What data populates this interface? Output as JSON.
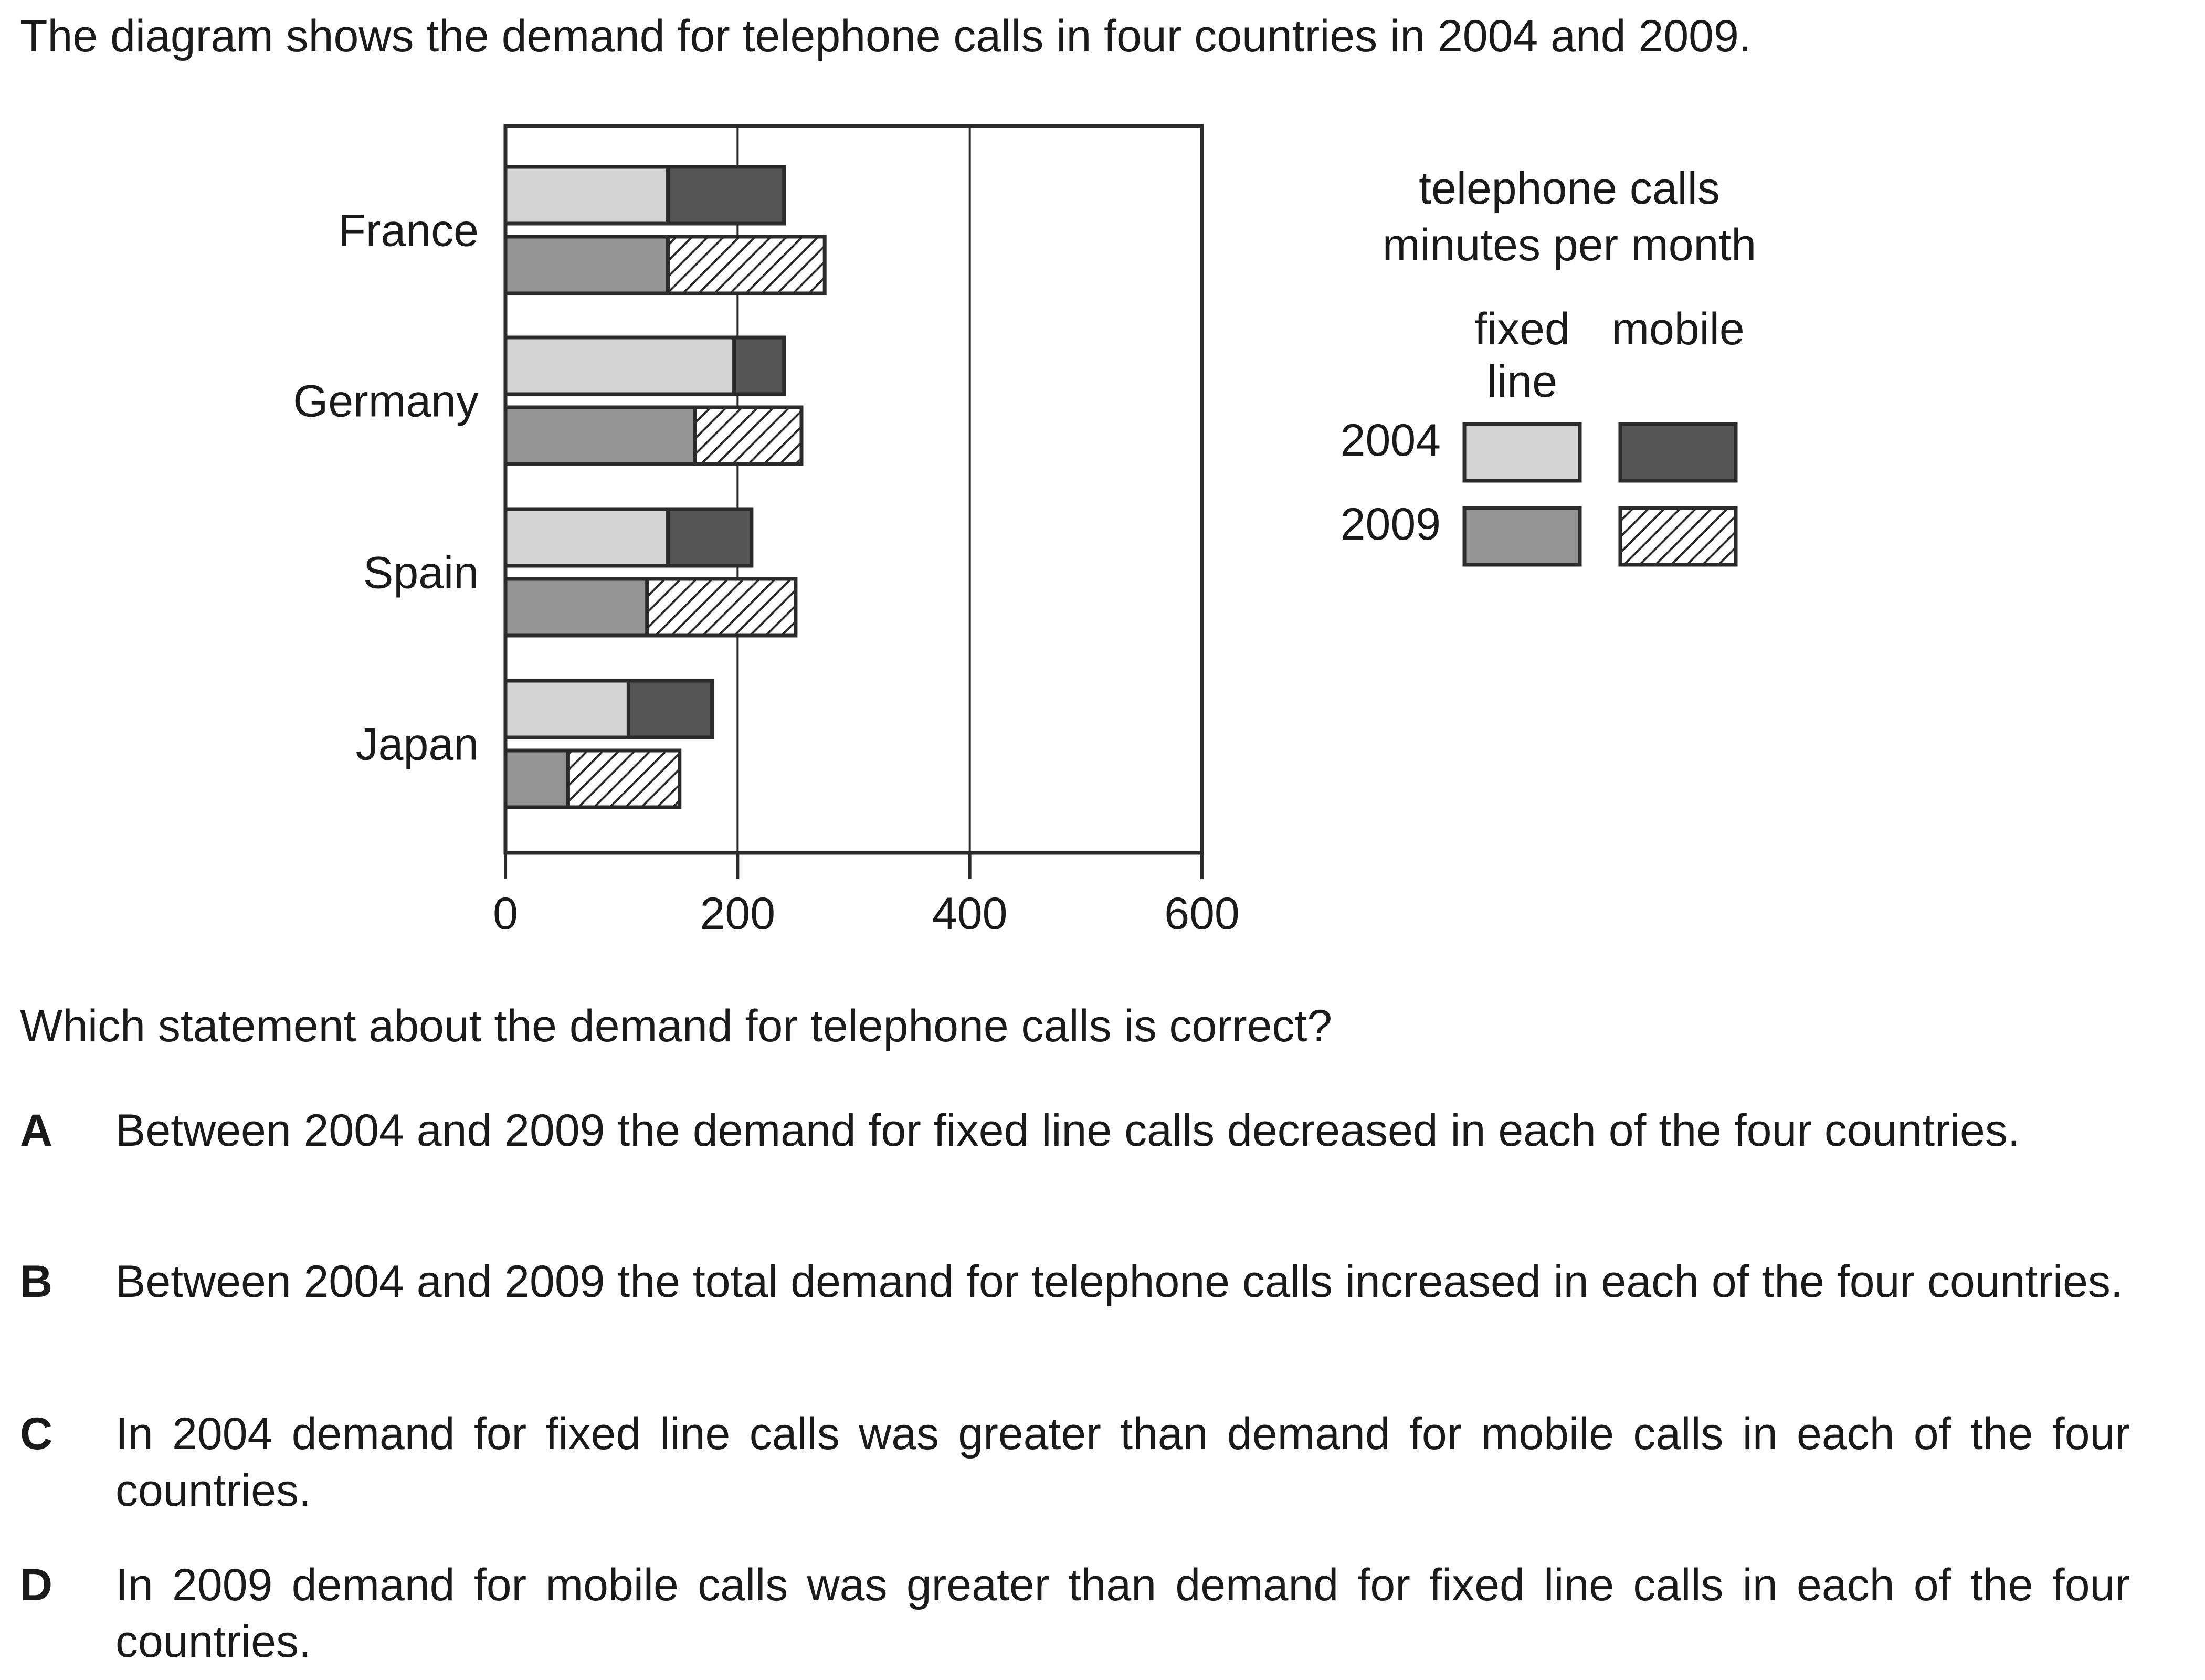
{
  "intro": "The diagram shows the demand for telephone calls in four countries in 2004 and 2009.",
  "question": "Which statement about the demand for telephone calls is correct?",
  "options": [
    {
      "letter": "A",
      "text": "Between 2004 and 2009 the demand for fixed line calls decreased in each of the four countries."
    },
    {
      "letter": "B",
      "text": "Between 2004 and 2009 the total demand for telephone calls increased in each of the four countries."
    },
    {
      "letter": "C",
      "text": "In 2004 demand for fixed line calls was greater than demand for mobile calls in each of the four countries."
    },
    {
      "letter": "D",
      "text": "In 2009 demand for mobile calls was greater than demand for fixed line calls in each of the four countries."
    }
  ],
  "chart_data": {
    "type": "bar",
    "orientation": "horizontal",
    "stacked": true,
    "categories": [
      "France",
      "Germany",
      "Spain",
      "Japan"
    ],
    "xlim": [
      0,
      600
    ],
    "xticks": [
      0,
      200,
      400,
      600
    ],
    "grid": "vertical",
    "legend_title_lines": [
      "telephone calls",
      "minutes per month"
    ],
    "legend_columns": [
      {
        "key": "fixed",
        "label_lines": [
          "fixed",
          "line"
        ]
      },
      {
        "key": "mobile",
        "label_lines": [
          "mobile"
        ]
      }
    ],
    "legend_rows": [
      "2004",
      "2009"
    ],
    "legend_position": "right",
    "bars": [
      {
        "category": "France",
        "year": "2004",
        "fixed": 140,
        "mobile": 100
      },
      {
        "category": "France",
        "year": "2009",
        "fixed": 140,
        "mobile": 135
      },
      {
        "category": "Germany",
        "year": "2004",
        "fixed": 197,
        "mobile": 43
      },
      {
        "category": "Germany",
        "year": "2009",
        "fixed": 163,
        "mobile": 92
      },
      {
        "category": "Spain",
        "year": "2004",
        "fixed": 140,
        "mobile": 72
      },
      {
        "category": "Spain",
        "year": "2009",
        "fixed": 122,
        "mobile": 128
      },
      {
        "category": "Japan",
        "year": "2004",
        "fixed": 106,
        "mobile": 72
      },
      {
        "category": "Japan",
        "year": "2009",
        "fixed": 54,
        "mobile": 96
      }
    ],
    "styles": {
      "fixed_2004": "#d4d4d4",
      "mobile_2004": "#555555",
      "fixed_2009": "#949494",
      "mobile_2009": "hatched",
      "outline": "#2a2a2a"
    }
  }
}
